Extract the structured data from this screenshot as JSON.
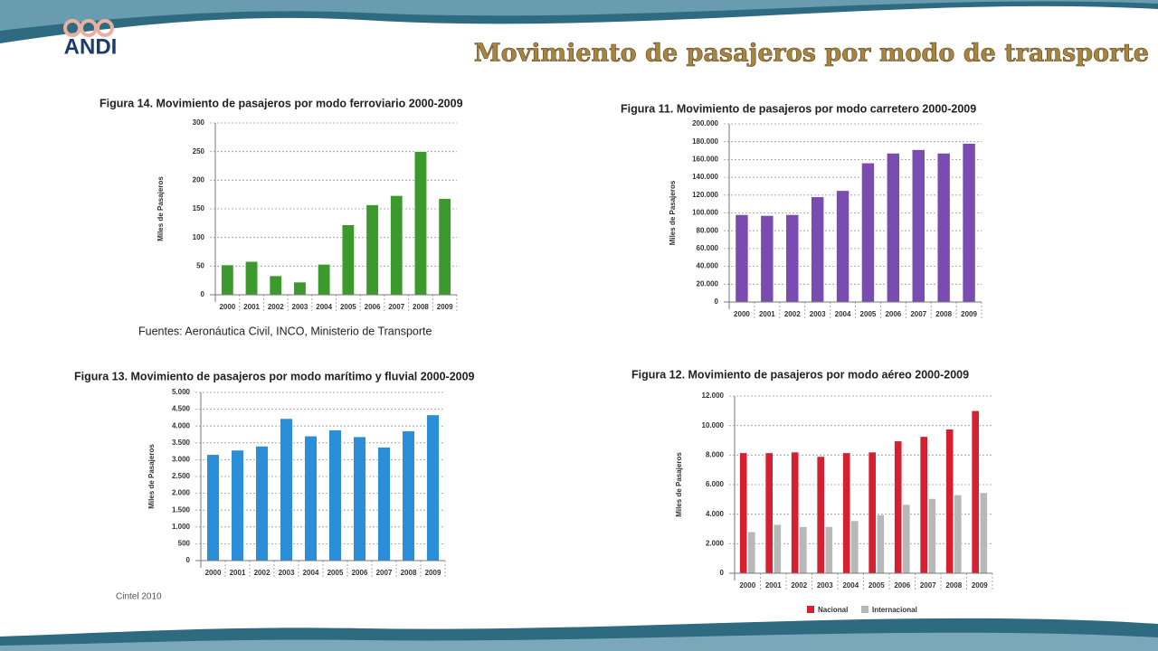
{
  "slide": {
    "title": "Movimiento de pasajeros por modo de transporte",
    "logo": "ANDI",
    "footer": "Cintel 2010"
  },
  "chart_data": [
    {
      "type": "bar",
      "title": "Figura 14. Movimiento de pasajeros por modo ferroviario 2000-2009",
      "y_label": "Miles de Pasajeros",
      "source": "Fuentes: Aeronáutica Civil, INCO, Ministerio de Transporte",
      "categories": [
        "2000",
        "2001",
        "2002",
        "2003",
        "2004",
        "2005",
        "2006",
        "2007",
        "2008",
        "2009"
      ],
      "series": [
        {
          "color": "#3c9a2c",
          "values": [
            52,
            58,
            33,
            22,
            53,
            122,
            157,
            173,
            250,
            168
          ]
        }
      ],
      "ylim": [
        0,
        300
      ],
      "yticks": [
        0,
        50,
        100,
        150,
        200,
        250,
        300
      ],
      "grid": true
    },
    {
      "type": "bar",
      "title": "Figura 11. Movimiento de pasajeros por modo carretero 2000-2009",
      "y_label": "Miles de Pasajeros",
      "categories": [
        "2000",
        "2001",
        "2002",
        "2003",
        "2004",
        "2005",
        "2006",
        "2007",
        "2008",
        "2009"
      ],
      "series": [
        {
          "color": "#7a4cb2",
          "values": [
            98000,
            97000,
            98000,
            118000,
            125000,
            156000,
            167000,
            171000,
            167000,
            178000
          ]
        }
      ],
      "ylim": [
        0,
        200000
      ],
      "yticks": [
        0,
        {
          "value": 20000,
          "label": "20.000"
        },
        {
          "value": 40000,
          "label": "40.000"
        },
        {
          "value": 60000,
          "label": "60.000"
        },
        {
          "value": 80000,
          "label": "80.000"
        },
        {
          "value": 100000,
          "label": "100.000"
        },
        {
          "value": 120000,
          "label": "120.000"
        },
        {
          "value": 140000,
          "label": "140.000"
        },
        {
          "value": 160000,
          "label": "160.000"
        },
        {
          "value": 180000,
          "label": "180.000"
        },
        {
          "value": 200000,
          "label": "200.000"
        }
      ],
      "grid": true
    },
    {
      "type": "bar",
      "title": "Figura 13. Movimiento de pasajeros por modo marítimo y fluvial 2000-2009",
      "y_label": "Miles de Pasajeros",
      "categories": [
        "2000",
        "2001",
        "2002",
        "2003",
        "2004",
        "2005",
        "2006",
        "2007",
        "2008",
        "2009"
      ],
      "series": [
        {
          "color": "#2a8ed8",
          "values": [
            3150,
            3280,
            3400,
            4220,
            3700,
            3880,
            3680,
            3370,
            3850,
            4330
          ]
        }
      ],
      "ylim": [
        0,
        5000
      ],
      "yticks": [
        0,
        500,
        {
          "value": 1000,
          "label": "1.000"
        },
        {
          "value": 1500,
          "label": "1.500"
        },
        {
          "value": 2000,
          "label": "2.000"
        },
        {
          "value": 2500,
          "label": "2.500"
        },
        {
          "value": 3000,
          "label": "3.000"
        },
        {
          "value": 3500,
          "label": "3.500"
        },
        {
          "value": 4000,
          "label": "4.000"
        },
        {
          "value": 4500,
          "label": "4.500"
        },
        {
          "value": 5000,
          "label": "5.000"
        }
      ],
      "grid": true
    },
    {
      "type": "bar",
      "title": "Figura 12. Movimiento de pasajeros por modo aéreo 2000-2009",
      "y_label": "Miles de Pasajeros",
      "categories": [
        "2000",
        "2001",
        "2002",
        "2003",
        "2004",
        "2005",
        "2006",
        "2007",
        "2008",
        "2009"
      ],
      "series": [
        {
          "name": "Nacional",
          "color": "#d42030",
          "values": [
            8150,
            8150,
            8200,
            7900,
            8150,
            8200,
            8950,
            9250,
            9750,
            11000
          ]
        },
        {
          "name": "Internacional",
          "color": "#b8b8b8",
          "values": [
            2800,
            3300,
            3150,
            3150,
            3550,
            3950,
            4650,
            5050,
            5300,
            5450
          ]
        }
      ],
      "ylim": [
        0,
        12000
      ],
      "yticks": [
        0,
        {
          "value": 2000,
          "label": "2.000"
        },
        {
          "value": 4000,
          "label": "4.000"
        },
        {
          "value": 6000,
          "label": "6.000"
        },
        {
          "value": 8000,
          "label": "8.000"
        },
        {
          "value": 10000,
          "label": "10.000"
        },
        {
          "value": 12000,
          "label": "12.000"
        }
      ],
      "grid": true
    }
  ]
}
